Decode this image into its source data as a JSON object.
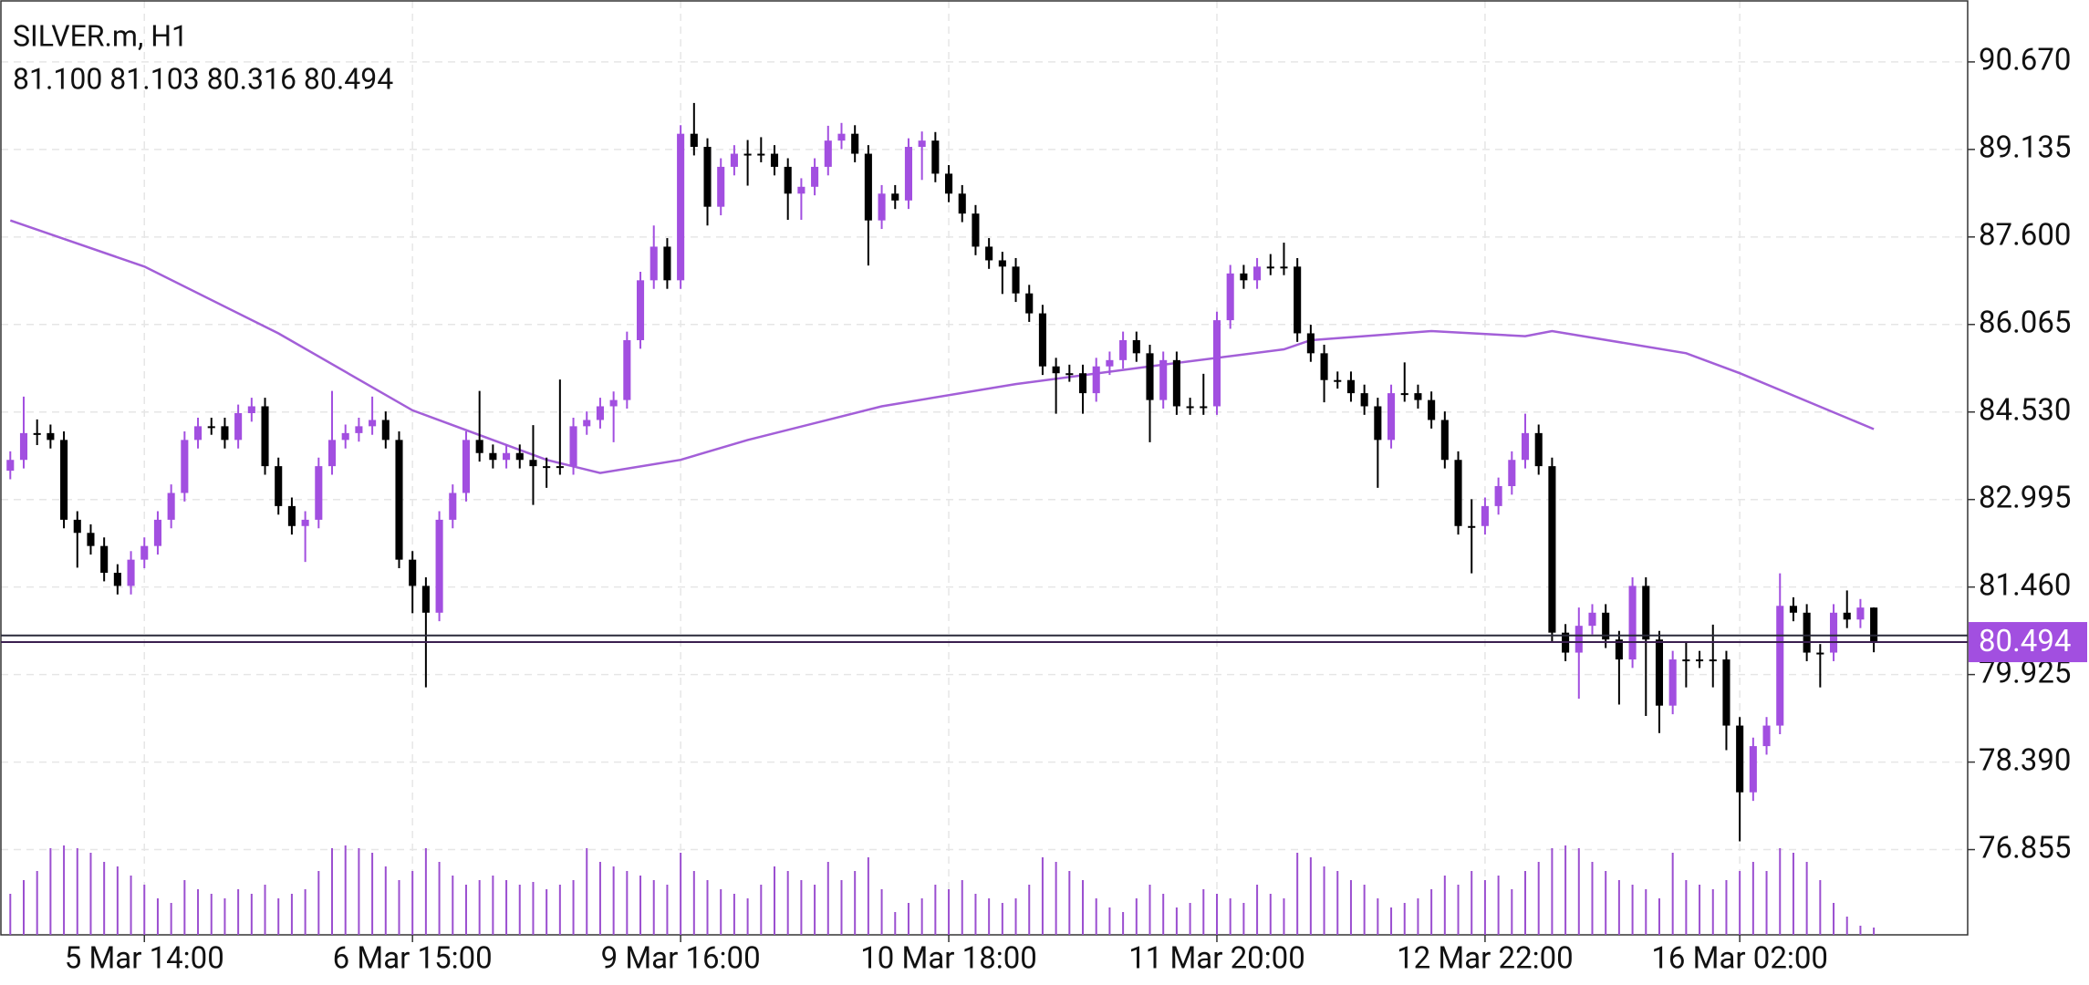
{
  "header": {
    "symbol": "SILVER.m, H1",
    "ohlc": "81.100 81.103 80.316 80.494"
  },
  "chart_data": {
    "type": "candlestick",
    "up_color": "#a24fe0",
    "down_color": "#000000",
    "open": [
      83.5,
      83.69,
      84.16,
      84.16,
      84.04,
      82.64,
      82.41,
      82.18,
      81.71,
      81.48,
      81.94,
      82.18,
      82.64,
      83.11,
      84.04,
      84.28,
      84.28,
      84.04,
      84.51,
      84.63,
      83.58,
      82.88,
      82.53,
      82.64,
      83.58,
      84.04,
      84.16,
      84.28,
      84.39,
      84.04,
      81.94,
      81.48,
      81.01,
      82.64,
      83.11,
      84.04,
      83.81,
      83.69,
      83.81,
      83.69,
      83.58,
      83.58,
      83.58,
      84.28,
      84.39,
      84.63,
      84.74,
      85.79,
      86.84,
      87.43,
      86.84,
      89.41,
      89.18,
      88.13,
      88.83,
      89.06,
      89.06,
      89.06,
      88.83,
      88.36,
      88.48,
      88.83,
      89.29,
      89.41,
      89.06,
      87.89,
      88.36,
      88.24,
      89.18,
      89.29,
      88.71,
      88.36,
      88.01,
      87.43,
      87.19,
      87.08,
      86.61,
      86.26,
      85.33,
      85.21,
      85.21,
      84.86,
      85.33,
      85.44,
      85.79,
      85.56,
      84.74,
      85.44,
      84.63,
      84.63,
      84.63,
      86.14,
      86.96,
      86.84,
      87.08,
      87.08,
      87.08,
      85.91,
      85.56,
      85.09,
      85.09,
      84.86,
      84.63,
      84.04,
      84.86,
      84.86,
      84.74,
      84.39,
      83.69,
      82.53,
      82.53,
      82.88,
      83.23,
      83.69,
      84.16,
      83.58,
      80.66,
      80.31,
      80.78,
      81.01,
      80.54,
      80.19,
      81.48,
      80.54,
      79.38,
      80.19,
      80.19,
      80.19,
      80.19,
      79.03,
      77.86,
      78.67,
      79.03,
      81.13,
      81.01,
      80.31,
      80.31,
      81.01,
      80.89,
      81.1
    ],
    "high": [
      83.84,
      84.8,
      84.4,
      84.31,
      84.19,
      82.79,
      82.56,
      82.33,
      81.86,
      82.09,
      82.33,
      82.79,
      83.26,
      84.19,
      84.43,
      84.43,
      84.43,
      84.66,
      84.78,
      84.78,
      83.73,
      83.03,
      82.79,
      83.73,
      84.9,
      84.31,
      84.43,
      84.8,
      84.54,
      84.19,
      82.09,
      81.63,
      82.79,
      83.26,
      84.19,
      84.9,
      83.96,
      83.96,
      83.96,
      84.3,
      83.73,
      85.1,
      84.43,
      84.54,
      84.78,
      84.89,
      85.94,
      86.99,
      87.8,
      87.58,
      89.56,
      89.95,
      89.33,
      88.98,
      89.21,
      89.3,
      89.35,
      89.21,
      88.98,
      88.63,
      88.98,
      89.55,
      89.6,
      89.56,
      89.21,
      88.51,
      88.51,
      89.33,
      89.45,
      89.44,
      88.86,
      88.51,
      88.16,
      87.58,
      87.34,
      87.23,
      86.76,
      86.41,
      85.48,
      85.36,
      85.36,
      85.48,
      85.59,
      85.94,
      85.94,
      85.71,
      85.59,
      85.59,
      84.78,
      85.2,
      86.29,
      87.11,
      87.11,
      87.23,
      87.3,
      87.5,
      87.23,
      86.06,
      85.71,
      85.24,
      85.24,
      85.01,
      84.78,
      85.01,
      85.4,
      85.01,
      84.89,
      84.54,
      83.84,
      83.0,
      83.03,
      83.38,
      83.84,
      84.5,
      84.31,
      83.73,
      80.81,
      81.1,
      81.16,
      81.16,
      80.69,
      81.63,
      81.63,
      80.69,
      80.34,
      80.5,
      80.34,
      80.8,
      80.34,
      79.18,
      78.82,
      79.18,
      81.7,
      81.28,
      81.16,
      80.46,
      81.16,
      81.4,
      81.25,
      81.103
    ],
    "low": [
      83.35,
      83.54,
      83.95,
      83.89,
      82.49,
      81.8,
      82.03,
      81.56,
      81.33,
      81.33,
      81.79,
      82.03,
      82.49,
      82.96,
      83.89,
      84.13,
      83.89,
      83.89,
      84.36,
      83.43,
      82.73,
      82.38,
      81.9,
      82.49,
      83.43,
      83.89,
      84.01,
      84.13,
      83.89,
      81.79,
      81.0,
      79.7,
      80.86,
      82.49,
      82.96,
      83.66,
      83.54,
      83.54,
      83.54,
      82.9,
      83.2,
      83.43,
      83.43,
      84.13,
      84.24,
      84.0,
      84.59,
      85.64,
      86.69,
      86.69,
      86.69,
      89.03,
      87.8,
      87.98,
      88.68,
      88.5,
      88.91,
      88.68,
      87.9,
      87.9,
      88.33,
      88.68,
      89.14,
      88.91,
      87.1,
      87.74,
      88.09,
      88.09,
      88.6,
      88.56,
      88.21,
      87.86,
      87.28,
      87.04,
      86.6,
      86.46,
      86.11,
      85.18,
      84.5,
      85.06,
      84.5,
      84.71,
      85.18,
      85.29,
      85.41,
      84.0,
      84.59,
      84.48,
      84.48,
      84.48,
      84.48,
      85.99,
      86.69,
      86.69,
      86.93,
      86.93,
      85.76,
      85.41,
      84.7,
      84.94,
      84.71,
      84.48,
      83.2,
      83.89,
      84.71,
      84.59,
      84.24,
      83.54,
      82.38,
      81.7,
      82.38,
      82.73,
      83.08,
      83.54,
      83.43,
      80.51,
      80.16,
      79.5,
      80.63,
      80.39,
      79.4,
      80.04,
      79.2,
      78.9,
      79.23,
      79.7,
      80.04,
      79.7,
      78.6,
      77.0,
      77.71,
      78.52,
      78.88,
      80.86,
      80.16,
      79.7,
      80.16,
      80.74,
      80.74,
      80.316
    ],
    "close": [
      83.69,
      84.16,
      84.16,
      84.04,
      82.64,
      82.41,
      82.18,
      81.71,
      81.48,
      81.94,
      82.18,
      82.64,
      83.11,
      84.04,
      84.28,
      84.28,
      84.04,
      84.51,
      84.63,
      83.58,
      82.88,
      82.53,
      82.64,
      83.58,
      84.04,
      84.16,
      84.28,
      84.39,
      84.04,
      81.94,
      81.48,
      81.01,
      82.64,
      83.11,
      84.04,
      83.81,
      83.69,
      83.81,
      83.69,
      83.58,
      83.58,
      83.58,
      84.28,
      84.39,
      84.63,
      84.74,
      85.79,
      86.84,
      87.43,
      86.84,
      89.41,
      89.18,
      88.13,
      88.83,
      89.06,
      89.06,
      89.06,
      88.83,
      88.36,
      88.48,
      88.83,
      89.29,
      89.41,
      89.06,
      87.89,
      88.36,
      88.24,
      89.18,
      89.29,
      88.71,
      88.36,
      88.01,
      87.43,
      87.19,
      87.08,
      86.61,
      86.26,
      85.33,
      85.21,
      85.21,
      84.86,
      85.33,
      85.44,
      85.79,
      85.56,
      84.74,
      85.44,
      84.63,
      84.63,
      84.63,
      86.14,
      86.96,
      86.84,
      87.08,
      87.08,
      87.08,
      85.91,
      85.56,
      85.09,
      85.09,
      84.86,
      84.63,
      84.04,
      84.86,
      84.86,
      84.74,
      84.39,
      83.69,
      82.53,
      82.53,
      82.88,
      83.23,
      83.69,
      84.16,
      83.58,
      80.66,
      80.31,
      80.78,
      81.01,
      80.54,
      80.19,
      81.48,
      80.54,
      79.38,
      80.19,
      80.19,
      80.19,
      80.19,
      79.03,
      77.86,
      78.67,
      79.03,
      81.13,
      81.01,
      80.31,
      80.31,
      81.01,
      80.89,
      81.1,
      80.494
    ],
    "xlim": [
      -0.7,
      146
    ],
    "xticks": [
      {
        "value": 10,
        "label": "5 Mar 14:00"
      },
      {
        "value": 30,
        "label": "6 Mar 15:00"
      },
      {
        "value": 50,
        "label": "9 Mar 16:00"
      },
      {
        "value": 70,
        "label": "10 Mar 18:00"
      },
      {
        "value": 90,
        "label": "11 Mar 20:00"
      },
      {
        "value": 110,
        "label": "12 Mar 22:00"
      },
      {
        "value": 129,
        "label": "16 Mar 02:00"
      }
    ],
    "ylim": [
      75.36,
      91.74
    ],
    "yticks": [
      76.855,
      {
        "value": 78.39,
        "label": "78.390"
      },
      79.925,
      {
        "value": 81.46,
        "label": "81.460"
      },
      82.995,
      {
        "value": 84.53,
        "label": "84.530"
      },
      86.065,
      {
        "value": 87.6,
        "label": "87.600"
      },
      89.135,
      {
        "value": 90.67,
        "label": "90.670"
      }
    ],
    "grid": true,
    "ma": {
      "color": "#a35fd8",
      "x": [
        0,
        10,
        20,
        30,
        40,
        44,
        50,
        55,
        65,
        75,
        85,
        95,
        97,
        106,
        113,
        115,
        125,
        129,
        139
      ],
      "values": [
        87.89,
        87.08,
        85.91,
        84.56,
        83.69,
        83.46,
        83.69,
        84.04,
        84.63,
        85.02,
        85.33,
        85.63,
        85.79,
        85.95,
        85.86,
        85.95,
        85.56,
        85.21,
        84.23
      ]
    },
    "volume": {
      "color": "#9b4fd0",
      "lim": [
        0,
        100
      ],
      "values": [
        45,
        60,
        70,
        95,
        98,
        95,
        90,
        80,
        75,
        65,
        55,
        40,
        35,
        60,
        50,
        45,
        40,
        50,
        45,
        55,
        40,
        45,
        50,
        70,
        95,
        98,
        95,
        90,
        75,
        60,
        70,
        95,
        80,
        65,
        55,
        60,
        65,
        60,
        55,
        58,
        50,
        55,
        60,
        95,
        80,
        75,
        70,
        65,
        60,
        55,
        90,
        70,
        60,
        50,
        45,
        40,
        55,
        75,
        70,
        60,
        55,
        80,
        60,
        70,
        85,
        50,
        25,
        35,
        40,
        55,
        50,
        60,
        45,
        40,
        35,
        40,
        55,
        85,
        80,
        70,
        60,
        40,
        30,
        25,
        40,
        55,
        45,
        30,
        35,
        50,
        45,
        40,
        35,
        55,
        45,
        40,
        90,
        85,
        75,
        70,
        60,
        55,
        40,
        30,
        35,
        40,
        50,
        65,
        55,
        70,
        60,
        65,
        50,
        70,
        80,
        95,
        98,
        95,
        80,
        70,
        60,
        55,
        50,
        40,
        90,
        60,
        55,
        50,
        60,
        70,
        80,
        70,
        95,
        90,
        80,
        60,
        35,
        20,
        10,
        8
      ]
    },
    "price_lines": [
      80.61,
      80.494
    ],
    "badge_color": "#a24fe0"
  }
}
